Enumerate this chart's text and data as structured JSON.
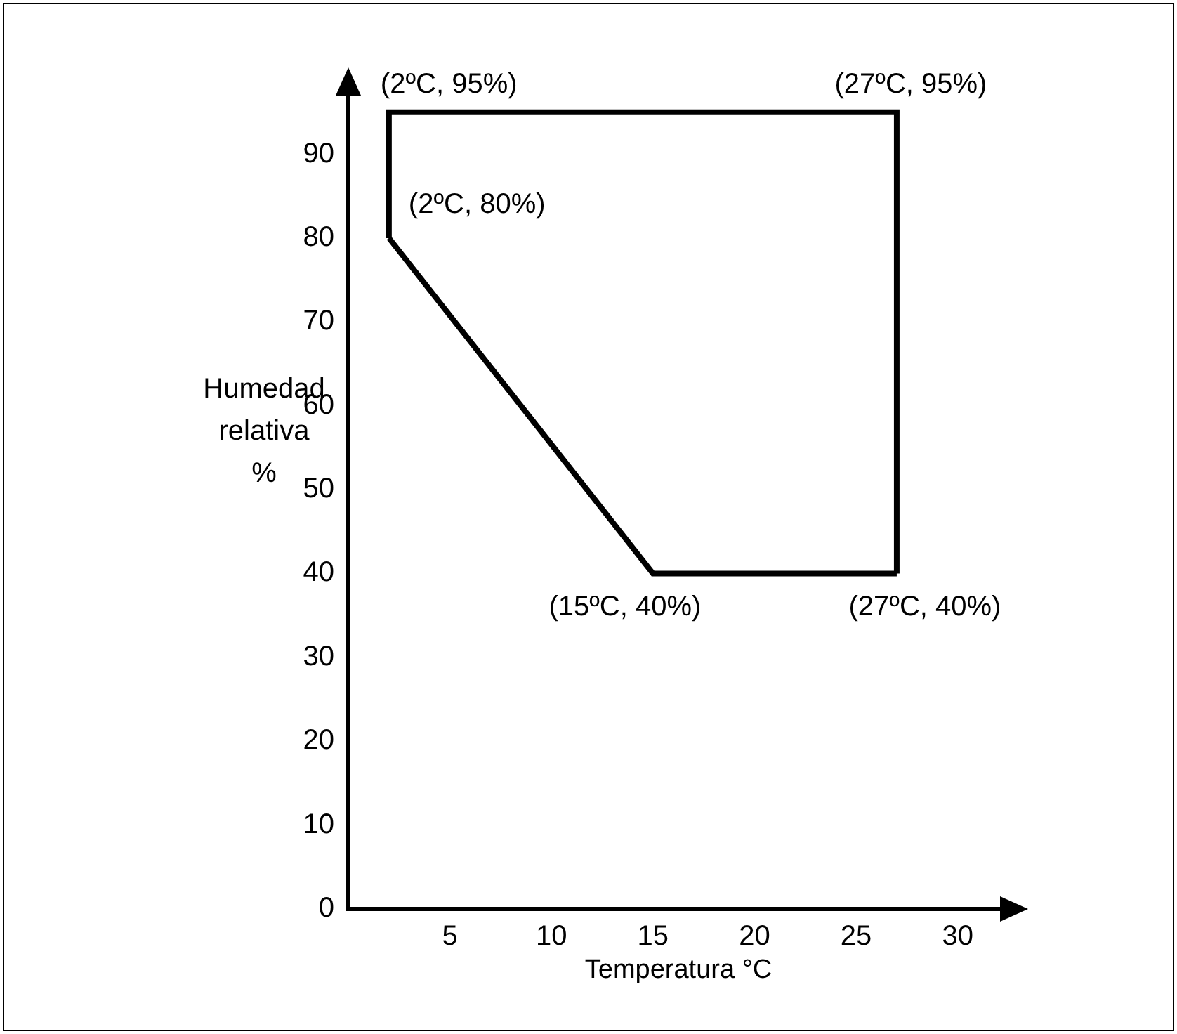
{
  "chart_data": {
    "type": "line",
    "xlabel": "Temperatura °C",
    "ylabel": "Humedad relativa %",
    "xlim": [
      0,
      32.5
    ],
    "xticks": [
      5,
      10,
      15,
      20,
      25,
      30
    ],
    "ylim": [
      0,
      98
    ],
    "yticks": [
      0,
      10,
      20,
      30,
      40,
      50,
      60,
      70,
      80,
      90
    ],
    "grid": false,
    "legend": false,
    "marker": "none",
    "line_style": "solid",
    "series": [
      {
        "color": "#000000",
        "x": [
          2,
          2,
          27,
          27
        ],
        "values": [
          80,
          95,
          95,
          40
        ]
      },
      {
        "color": "#000000",
        "x": [
          2,
          15,
          27
        ],
        "values": [
          80,
          40,
          40
        ]
      }
    ],
    "annotations": [
      {
        "text": "(2ºC, 95%)",
        "x": 2,
        "y": 95
      },
      {
        "text": "(27ºC, 95%)",
        "x": 27,
        "y": 95
      },
      {
        "text": "(2ºC, 80%)",
        "x": 2,
        "y": 80
      },
      {
        "text": "(15ºC, 40%)",
        "x": 15,
        "y": 40
      },
      {
        "text": "(27ºC, 40%)",
        "x": 27,
        "y": 40
      }
    ]
  }
}
